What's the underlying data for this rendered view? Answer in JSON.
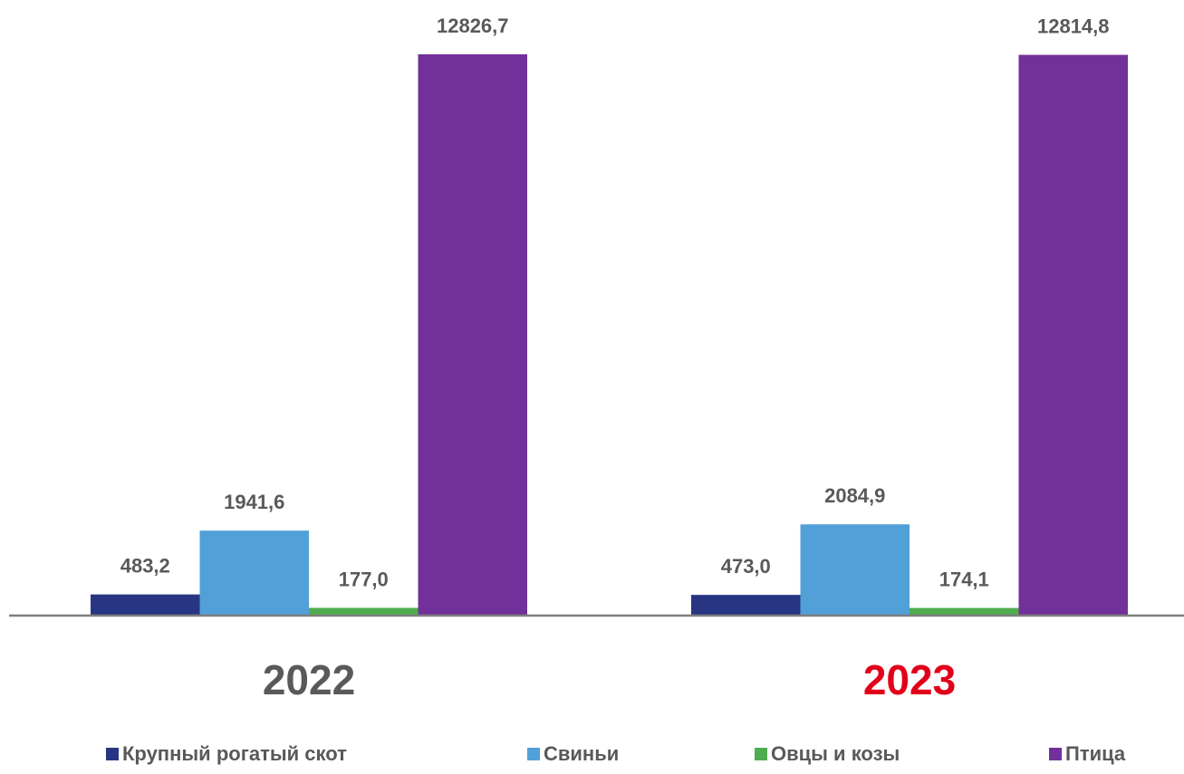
{
  "chart_data": {
    "type": "bar",
    "categories": [
      "2022",
      "2023"
    ],
    "category_colors": [
      "#595959",
      "#e2001a"
    ],
    "series": [
      {
        "name": "Крупный рогатый скот",
        "color": "#283583",
        "values": [
          483.2,
          473.0
        ],
        "value_labels": [
          "483,2",
          "473,0"
        ]
      },
      {
        "name": "Свиньи",
        "color": "#52a0d8",
        "values": [
          1941.6,
          2084.9
        ],
        "value_labels": [
          "1941,6",
          "2084,9"
        ]
      },
      {
        "name": "Овцы и козы",
        "color": "#4fad50",
        "values": [
          177.0,
          174.1
        ],
        "value_labels": [
          "177,0",
          "174,1"
        ]
      },
      {
        "name": "Птица",
        "color": "#72309b",
        "values": [
          12826.7,
          12814.8
        ],
        "value_labels": [
          "12826,7",
          "12814,8"
        ]
      }
    ],
    "legend": "bottom"
  }
}
